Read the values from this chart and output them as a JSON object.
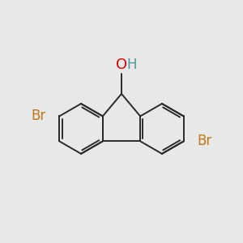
{
  "background_color": "#e8e8e8",
  "bond_color": "#2a2a2a",
  "bond_width": 1.4,
  "O_color": "#dd0000",
  "H_color": "#4a9898",
  "Br_color": "#c07818",
  "font_size_O": 13,
  "font_size_H": 12,
  "font_size_Br": 12,
  "figsize": [
    3.0,
    3.0
  ],
  "dpi": 100,
  "xlim": [
    0,
    10
  ],
  "ylim": [
    0,
    10
  ]
}
